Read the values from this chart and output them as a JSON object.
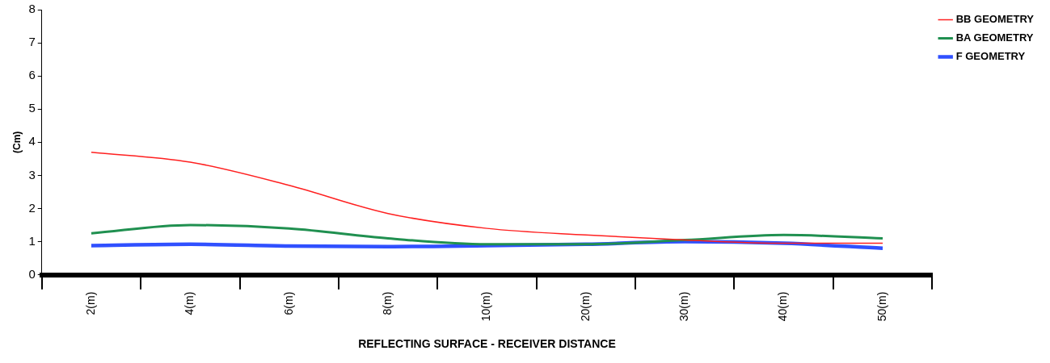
{
  "chart_data": {
    "type": "line",
    "xlabel": "REFLECTING SURFACE - RECEIVER DISTANCE",
    "ylabel": "(Cm)",
    "categories": [
      "2(m)",
      "4(m)",
      "6(m)",
      "8(m)",
      "10(m)",
      "20(m)",
      "30(m)",
      "40(m)",
      "50(m)"
    ],
    "series": [
      {
        "name": "BB GEOMETRY",
        "color": "#ff2020",
        "values": [
          3.7,
          3.4,
          2.7,
          1.85,
          1.4,
          1.2,
          1.05,
          0.95,
          0.95
        ]
      },
      {
        "name": "BA GEOMETRY",
        "color": "#209050",
        "values": [
          1.25,
          1.5,
          1.4,
          1.1,
          0.92,
          0.92,
          1.05,
          1.2,
          1.1
        ]
      },
      {
        "name": "F GEOMETRY",
        "color": "#3050ff",
        "values": [
          0.88,
          0.92,
          0.87,
          0.85,
          0.88,
          0.92,
          1.0,
          0.95,
          0.8
        ]
      }
    ],
    "ylim": [
      0,
      8
    ],
    "yticks": [
      0,
      1,
      2,
      3,
      4,
      5,
      6,
      7,
      8
    ],
    "grid": false,
    "legend": "top right",
    "marker": "none",
    "line_style": "solid"
  }
}
